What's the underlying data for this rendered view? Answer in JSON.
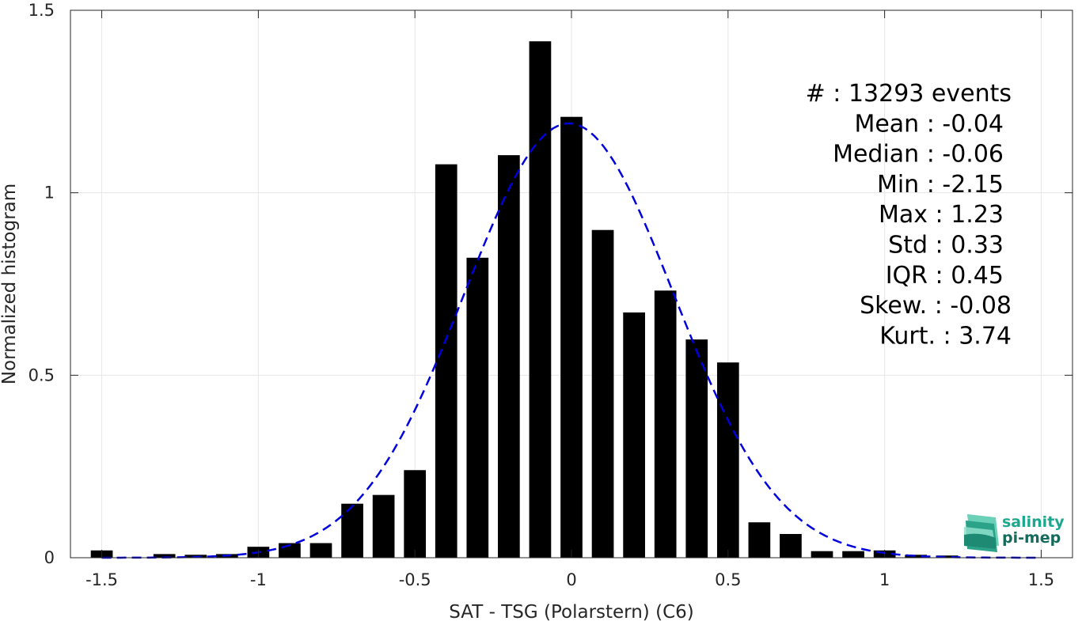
{
  "chart_data": {
    "type": "bar",
    "xlabel": "SAT - TSG (Polarstern) (C6)",
    "ylabel": "Normalized histogram",
    "xlim": [
      -1.6,
      1.6
    ],
    "ylim": [
      0,
      1.5
    ],
    "xticks": [
      -1.5,
      -1,
      -0.5,
      0,
      0.5,
      1,
      1.5
    ],
    "xtick_labels": [
      "-1.5",
      "-1",
      "-0.5",
      "0",
      "0.5",
      "1",
      "1.5"
    ],
    "yticks": [
      0,
      0.5,
      1,
      1.5
    ],
    "ytick_labels": [
      "0",
      "0.5",
      "1",
      "1.5"
    ],
    "grid": true,
    "bar_width": 0.07,
    "bars": [
      {
        "x": -1.5,
        "y": 0.02
      },
      {
        "x": -1.3,
        "y": 0.01
      },
      {
        "x": -1.2,
        "y": 0.008
      },
      {
        "x": -1.1,
        "y": 0.01
      },
      {
        "x": -1.0,
        "y": 0.03
      },
      {
        "x": -0.9,
        "y": 0.04
      },
      {
        "x": -0.8,
        "y": 0.04
      },
      {
        "x": -0.7,
        "y": 0.148
      },
      {
        "x": -0.6,
        "y": 0.172
      },
      {
        "x": -0.5,
        "y": 0.24
      },
      {
        "x": -0.4,
        "y": 1.078
      },
      {
        "x": -0.3,
        "y": 0.822
      },
      {
        "x": -0.2,
        "y": 1.103
      },
      {
        "x": -0.1,
        "y": 1.415
      },
      {
        "x": 0.0,
        "y": 1.208
      },
      {
        "x": 0.1,
        "y": 0.898
      },
      {
        "x": 0.2,
        "y": 0.672
      },
      {
        "x": 0.3,
        "y": 0.732
      },
      {
        "x": 0.4,
        "y": 0.598
      },
      {
        "x": 0.5,
        "y": 0.535
      },
      {
        "x": 0.6,
        "y": 0.097
      },
      {
        "x": 0.7,
        "y": 0.065
      },
      {
        "x": 0.8,
        "y": 0.018
      },
      {
        "x": 0.9,
        "y": 0.018
      },
      {
        "x": 1.0,
        "y": 0.02
      },
      {
        "x": 1.1,
        "y": 0.008
      },
      {
        "x": 1.2,
        "y": 0.006
      }
    ],
    "fit_curve": {
      "type": "gaussian",
      "mean": -0.008,
      "std": 0.335,
      "peak": 1.19,
      "x_range": [
        -1.5,
        1.5
      ],
      "color": "#0000dd",
      "style": "dashed"
    },
    "bar_color": "#000000",
    "stats": [
      "#  : 13293 events",
      "Mean : -0.04",
      "Median : -0.06",
      "Min : -2.15",
      "Max : 1.23",
      "Std : 0.33",
      "IQR : 0.45",
      "Skew. : -0.08",
      "Kurt. : 3.74"
    ]
  },
  "logo": {
    "line1": "salinity",
    "line2": "pi-mep",
    "color1": "#1aa88f",
    "color2": "#146b5c"
  }
}
